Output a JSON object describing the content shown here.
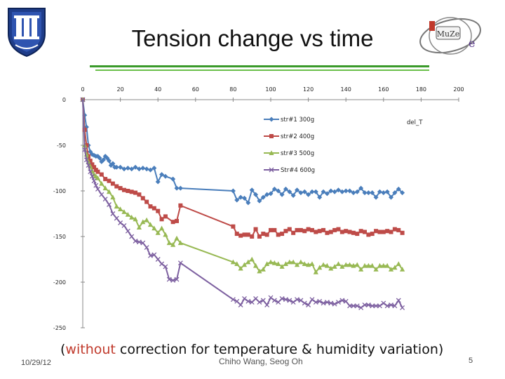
{
  "header": {
    "title": "Tension change vs time"
  },
  "footer": {
    "caption_pre": "(",
    "caption_emph": "without",
    "caption_post": " correction for temperature & humidity variation)",
    "date": "10/29/12",
    "author": "Chiho Wang, Seog Oh",
    "page": "5"
  },
  "logos": {
    "right_text": "MuZe",
    "right_letter": "e"
  },
  "colors": {
    "accent_green": "#3a9a2a",
    "series1": "#4a7ebb",
    "series2": "#be4b48",
    "series3": "#98b954",
    "series4": "#7d60a0"
  },
  "chart_data": {
    "type": "line",
    "title": "Tension change vs time",
    "xlabel": "",
    "ylabel": "",
    "annotation": "del_T",
    "xlim": [
      0,
      200
    ],
    "ylim": [
      -250,
      0
    ],
    "x_ticks": [
      0,
      20,
      40,
      60,
      80,
      100,
      120,
      140,
      160,
      180,
      200
    ],
    "x_tick_labels": [
      "0",
      "20",
      "40",
      "60",
      "80",
      "100",
      "120",
      "140",
      "160",
      "180",
      "200"
    ],
    "y_ticks": [
      0,
      -50,
      -100,
      -150,
      -200,
      -250
    ],
    "y_tick_labels": [
      "0",
      "-50",
      "-100",
      "-150",
      "-200",
      "-250"
    ],
    "legend_position": "top-center",
    "series": [
      {
        "name": "str#1 300g",
        "marker": "diamond",
        "x": [
          0,
          1,
          2,
          3,
          4,
          5,
          6,
          7,
          8,
          9,
          10,
          11,
          12,
          13,
          14,
          15,
          16,
          17,
          18,
          20,
          22,
          24,
          26,
          28,
          30,
          32,
          34,
          36,
          38,
          40,
          42,
          44,
          48,
          50,
          52,
          80,
          82,
          84,
          86,
          88,
          90,
          92,
          94,
          96,
          98,
          100,
          102,
          104,
          106,
          108,
          110,
          112,
          114,
          116,
          118,
          120,
          122,
          124,
          126,
          128,
          130,
          132,
          134,
          136,
          138,
          140,
          142,
          144,
          146,
          148,
          150,
          152,
          154,
          156,
          158,
          160,
          162,
          164,
          166,
          168,
          170
        ],
        "y": [
          0,
          -17,
          -30,
          -50,
          -57,
          -60,
          -61,
          -62,
          -62,
          -64,
          -68,
          -66,
          -62,
          -64,
          -67,
          -72,
          -70,
          -74,
          -74,
          -74,
          -76,
          -75,
          -76,
          -74,
          -76,
          -75,
          -76,
          -77,
          -75,
          -90,
          -82,
          -84,
          -87,
          -97,
          -97,
          -100,
          -110,
          -107,
          -108,
          -113,
          -99,
          -104,
          -111,
          -107,
          -104,
          -103,
          -98,
          -100,
          -104,
          -98,
          -101,
          -105,
          -99,
          -102,
          -101,
          -104,
          -101,
          -101,
          -107,
          -101,
          -103,
          -100,
          -101,
          -99,
          -101,
          -100,
          -100,
          -102,
          -101,
          -97,
          -102,
          -102,
          -102,
          -107,
          -101,
          -102,
          -101,
          -107,
          -102,
          -98,
          -102
        ]
      },
      {
        "name": "str#2 400g",
        "marker": "square",
        "x": [
          0,
          1,
          2,
          3,
          4,
          5,
          6,
          7,
          8,
          10,
          12,
          14,
          16,
          18,
          20,
          22,
          24,
          26,
          28,
          30,
          32,
          34,
          36,
          38,
          40,
          42,
          44,
          48,
          50,
          52,
          80,
          82,
          84,
          86,
          88,
          90,
          92,
          94,
          96,
          98,
          100,
          102,
          104,
          106,
          108,
          110,
          112,
          114,
          116,
          118,
          120,
          122,
          124,
          126,
          128,
          130,
          132,
          134,
          136,
          138,
          140,
          142,
          144,
          146,
          148,
          150,
          152,
          154,
          156,
          158,
          160,
          162,
          164,
          166,
          168,
          170
        ],
        "y": [
          0,
          -33,
          -50,
          -62,
          -67,
          -71,
          -74,
          -77,
          -79,
          -82,
          -87,
          -89,
          -92,
          -95,
          -97,
          -99,
          -100,
          -101,
          -102,
          -104,
          -108,
          -112,
          -117,
          -119,
          -122,
          -131,
          -128,
          -134,
          -133,
          -116,
          -139,
          -147,
          -149,
          -148,
          -148,
          -150,
          -142,
          -150,
          -147,
          -148,
          -143,
          -143,
          -148,
          -147,
          -144,
          -142,
          -146,
          -143,
          -143,
          -144,
          -142,
          -143,
          -145,
          -144,
          -143,
          -146,
          -145,
          -143,
          -142,
          -145,
          -144,
          -145,
          -146,
          -147,
          -144,
          -145,
          -148,
          -147,
          -144,
          -145,
          -145,
          -144,
          -145,
          -142,
          -143,
          -146
        ]
      },
      {
        "name": "str#3 500g",
        "marker": "triangle",
        "x": [
          0,
          1,
          2,
          3,
          4,
          5,
          6,
          7,
          8,
          10,
          12,
          14,
          16,
          18,
          20,
          22,
          24,
          26,
          28,
          30,
          32,
          34,
          36,
          38,
          40,
          42,
          44,
          46,
          48,
          50,
          52,
          80,
          82,
          84,
          86,
          88,
          90,
          92,
          94,
          96,
          98,
          100,
          102,
          104,
          106,
          108,
          110,
          112,
          114,
          116,
          118,
          120,
          122,
          124,
          126,
          128,
          130,
          132,
          134,
          136,
          138,
          140,
          142,
          144,
          146,
          148,
          150,
          152,
          154,
          156,
          158,
          160,
          162,
          164,
          166,
          168,
          170
        ],
        "y": [
          0,
          -50,
          -60,
          -68,
          -73,
          -78,
          -82,
          -84,
          -86,
          -92,
          -97,
          -101,
          -107,
          -117,
          -120,
          -123,
          -126,
          -129,
          -131,
          -140,
          -134,
          -132,
          -137,
          -141,
          -146,
          -141,
          -148,
          -157,
          -159,
          -152,
          -157,
          -178,
          -180,
          -185,
          -181,
          -178,
          -175,
          -182,
          -188,
          -186,
          -180,
          -178,
          -179,
          -180,
          -183,
          -180,
          -178,
          -178,
          -181,
          -178,
          -180,
          -181,
          -180,
          -189,
          -184,
          -181,
          -182,
          -185,
          -183,
          -180,
          -183,
          -181,
          -181,
          -182,
          -181,
          -186,
          -182,
          -182,
          -182,
          -186,
          -182,
          -182,
          -182,
          -186,
          -184,
          -180,
          -186
        ]
      },
      {
        "name": "Str#4 600g",
        "marker": "x",
        "x": [
          0,
          1,
          2,
          3,
          4,
          5,
          6,
          7,
          8,
          10,
          12,
          14,
          16,
          18,
          20,
          22,
          24,
          26,
          28,
          30,
          32,
          34,
          36,
          38,
          40,
          42,
          44,
          46,
          48,
          50,
          52,
          80,
          82,
          84,
          86,
          88,
          90,
          92,
          94,
          96,
          98,
          100,
          102,
          104,
          106,
          108,
          110,
          112,
          114,
          116,
          118,
          120,
          122,
          124,
          126,
          128,
          130,
          132,
          134,
          136,
          138,
          140,
          142,
          144,
          146,
          148,
          150,
          152,
          154,
          156,
          158,
          160,
          162,
          164,
          166,
          168,
          170
        ],
        "y": [
          0,
          -55,
          -66,
          -72,
          -79,
          -84,
          -89,
          -94,
          -98,
          -104,
          -109,
          -115,
          -125,
          -130,
          -135,
          -138,
          -144,
          -150,
          -155,
          -156,
          -157,
          -162,
          -171,
          -170,
          -175,
          -180,
          -183,
          -197,
          -198,
          -197,
          -179,
          -219,
          -221,
          -225,
          -218,
          -221,
          -222,
          -218,
          -222,
          -220,
          -225,
          -217,
          -220,
          -222,
          -218,
          -219,
          -220,
          -222,
          -219,
          -220,
          -223,
          -225,
          -219,
          -222,
          -221,
          -223,
          -222,
          -223,
          -224,
          -222,
          -220,
          -221,
          -226,
          -226,
          -226,
          -228,
          -225,
          -225,
          -226,
          -226,
          -226,
          -223,
          -226,
          -225,
          -226,
          -220,
          -228
        ]
      }
    ]
  }
}
